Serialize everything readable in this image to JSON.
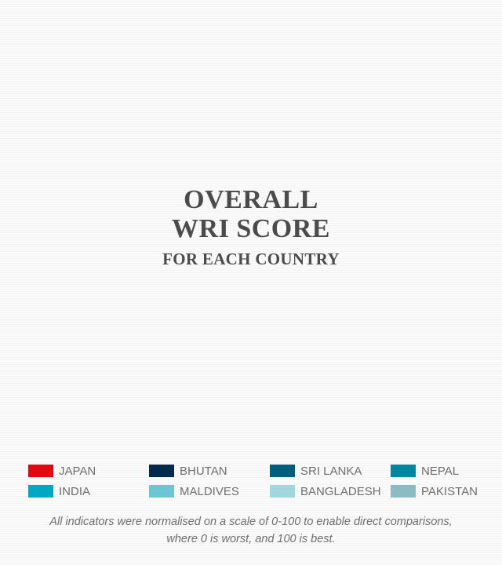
{
  "chart_data": {
    "type": "other",
    "title_line1": "OVERALL",
    "title_line2": "WRI SCORE",
    "subtitle": "FOR EACH COUNTRY",
    "legend": [
      {
        "label": "JAPAN",
        "color": "#e30613"
      },
      {
        "label": "BHUTAN",
        "color": "#002b4f"
      },
      {
        "label": "SRI LANKA",
        "color": "#005f7f"
      },
      {
        "label": "NEPAL",
        "color": "#00879f"
      },
      {
        "label": "INDIA",
        "color": "#00a8c6"
      },
      {
        "label": "MALDIVES",
        "color": "#6bc5d2"
      },
      {
        "label": "BANGLADESH",
        "color": "#9ed7de"
      },
      {
        "label": "PAKISTAN",
        "color": "#8bbcc4"
      }
    ],
    "note_line1": "All indicators were normalised on a scale of 0-100 to enable direct comparisons,",
    "note_line2": "where 0 is worst, and 100 is best."
  }
}
